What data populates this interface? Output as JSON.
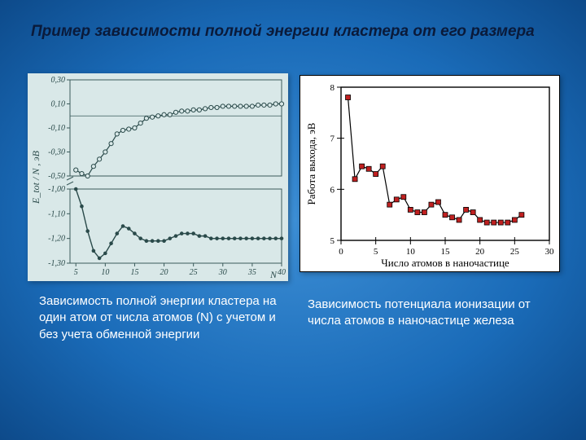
{
  "title": "Пример зависимости полной энергии кластера от его размера",
  "caption1": "Зависимость полной энергии кластера на один атом от числа атомов (N) с учетом и без учета обменной энергии",
  "caption2": "Зависимость потенциала ионизации от числа атомов в наночастице железа",
  "chart1": {
    "type": "line",
    "background_color": "#d9e8e8",
    "plot_bg": "#d9e8e8",
    "axis_color": "#3a5a5a",
    "text_color": "#2a4a4a",
    "xlim": [
      4,
      40
    ],
    "xticks": [
      5,
      10,
      15,
      20,
      25,
      30,
      35,
      40
    ],
    "y_upper_ticks": [
      -0.5,
      -0.3,
      -0.1,
      0.1,
      0.3
    ],
    "y_upper_labels": [
      "-0,50",
      "-0,30",
      "-0,10",
      "0,10",
      "0,30"
    ],
    "y_lower_ticks": [
      -1.3,
      -1.2,
      -1.1,
      -1.0
    ],
    "y_lower_labels": [
      "-1,30",
      "-1,20",
      "-1,10",
      "-1,00"
    ],
    "ylabel": "E_tot / N , эВ",
    "xlabel": "N",
    "hline_y": 0,
    "seriesA": {
      "marker": "circle-open",
      "marker_stroke": "#2a4a4a",
      "marker_fill": "#d9e8e8",
      "line_color": "#2a4a4a",
      "line_width": 1.2,
      "data": [
        [
          5,
          -0.45
        ],
        [
          6,
          -0.48
        ],
        [
          7,
          -0.5
        ],
        [
          8,
          -0.42
        ],
        [
          9,
          -0.36
        ],
        [
          10,
          -0.3
        ],
        [
          11,
          -0.23
        ],
        [
          12,
          -0.15
        ],
        [
          13,
          -0.12
        ],
        [
          14,
          -0.11
        ],
        [
          15,
          -0.1
        ],
        [
          16,
          -0.06
        ],
        [
          17,
          -0.02
        ],
        [
          18,
          -0.01
        ],
        [
          19,
          0.0
        ],
        [
          20,
          0.01
        ],
        [
          21,
          0.01
        ],
        [
          22,
          0.03
        ],
        [
          23,
          0.04
        ],
        [
          24,
          0.04
        ],
        [
          25,
          0.05
        ],
        [
          26,
          0.05
        ],
        [
          27,
          0.06
        ],
        [
          28,
          0.07
        ],
        [
          29,
          0.07
        ],
        [
          30,
          0.08
        ],
        [
          31,
          0.08
        ],
        [
          32,
          0.08
        ],
        [
          33,
          0.08
        ],
        [
          34,
          0.08
        ],
        [
          35,
          0.08
        ],
        [
          36,
          0.09
        ],
        [
          37,
          0.09
        ],
        [
          38,
          0.09
        ],
        [
          39,
          0.1
        ],
        [
          40,
          0.1
        ]
      ]
    },
    "seriesB": {
      "marker": "circle-filled",
      "marker_fill": "#2a4a4a",
      "line_color": "#2a4a4a",
      "line_width": 1.4,
      "data": [
        [
          5,
          -1.0
        ],
        [
          6,
          -1.07
        ],
        [
          7,
          -1.17
        ],
        [
          8,
          -1.25
        ],
        [
          9,
          -1.28
        ],
        [
          10,
          -1.26
        ],
        [
          11,
          -1.22
        ],
        [
          12,
          -1.18
        ],
        [
          13,
          -1.15
        ],
        [
          14,
          -1.16
        ],
        [
          15,
          -1.18
        ],
        [
          16,
          -1.2
        ],
        [
          17,
          -1.21
        ],
        [
          18,
          -1.21
        ],
        [
          19,
          -1.21
        ],
        [
          20,
          -1.21
        ],
        [
          21,
          -1.2
        ],
        [
          22,
          -1.19
        ],
        [
          23,
          -1.18
        ],
        [
          24,
          -1.18
        ],
        [
          25,
          -1.18
        ],
        [
          26,
          -1.19
        ],
        [
          27,
          -1.19
        ],
        [
          28,
          -1.2
        ],
        [
          29,
          -1.2
        ],
        [
          30,
          -1.2
        ],
        [
          31,
          -1.2
        ],
        [
          32,
          -1.2
        ],
        [
          33,
          -1.2
        ],
        [
          34,
          -1.2
        ],
        [
          35,
          -1.2
        ],
        [
          36,
          -1.2
        ],
        [
          37,
          -1.2
        ],
        [
          38,
          -1.2
        ],
        [
          39,
          -1.2
        ],
        [
          40,
          -1.2
        ]
      ]
    }
  },
  "chart2": {
    "type": "line",
    "background_color": "#ffffff",
    "plot_border": "#000000",
    "xlim": [
      0,
      30
    ],
    "ylim": [
      5,
      8
    ],
    "xticks": [
      0,
      5,
      10,
      15,
      20,
      25,
      30
    ],
    "yticks": [
      5,
      6,
      7,
      8
    ],
    "ylabel": "Работа выхода, эВ",
    "xlabel": "Число атомов в наночастице",
    "series": {
      "marker": "square",
      "marker_fill": "#c02020",
      "marker_stroke": "#000000",
      "line_color": "#000000",
      "line_width": 1.2,
      "data": [
        [
          1,
          7.8
        ],
        [
          2,
          6.2
        ],
        [
          3,
          6.45
        ],
        [
          4,
          6.4
        ],
        [
          5,
          6.3
        ],
        [
          6,
          6.45
        ],
        [
          7,
          5.7
        ],
        [
          8,
          5.8
        ],
        [
          9,
          5.85
        ],
        [
          10,
          5.6
        ],
        [
          11,
          5.55
        ],
        [
          12,
          5.55
        ],
        [
          13,
          5.7
        ],
        [
          14,
          5.75
        ],
        [
          15,
          5.5
        ],
        [
          16,
          5.45
        ],
        [
          17,
          5.4
        ],
        [
          18,
          5.6
        ],
        [
          19,
          5.55
        ],
        [
          20,
          5.4
        ],
        [
          21,
          5.35
        ],
        [
          22,
          5.35
        ],
        [
          23,
          5.35
        ],
        [
          24,
          5.35
        ],
        [
          25,
          5.4
        ],
        [
          26,
          5.5
        ]
      ]
    }
  }
}
